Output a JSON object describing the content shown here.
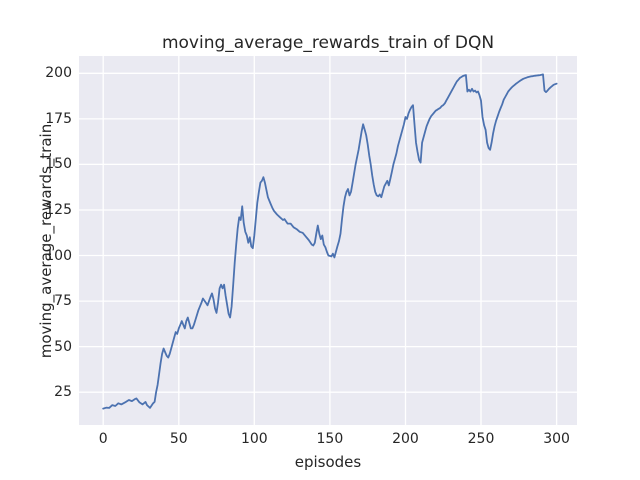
{
  "colors": {
    "figure_background": "#ffffff",
    "plot_background": "#eaeaf2",
    "gridline": "#ffffff",
    "line": "#4c72b0",
    "text": "#262626"
  },
  "chart_data": {
    "type": "line",
    "title": "moving_average_rewards_train of DQN",
    "xlabel": "episodes",
    "ylabel": "moving_average_rewards_train",
    "x_ticks": [
      0,
      50,
      100,
      150,
      200,
      250,
      300
    ],
    "y_ticks": [
      25,
      50,
      75,
      100,
      125,
      150,
      175,
      200
    ],
    "xlim": [
      -16,
      313.5
    ],
    "ylim": [
      7,
      209.5
    ],
    "grid": true,
    "legend_position": "none",
    "series": [
      {
        "name": "moving_average_rewards_train",
        "color": "#4c72b0",
        "x": [
          0,
          2,
          4,
          6,
          8,
          10,
          12,
          15,
          17,
          19,
          21,
          22,
          24,
          26,
          28,
          29,
          31,
          33,
          34,
          35,
          36,
          37,
          38,
          39,
          40,
          41,
          42,
          43,
          44,
          45,
          46,
          47,
          48,
          49,
          50,
          51,
          52,
          53,
          54,
          55,
          56,
          57,
          58,
          59,
          60,
          61,
          63,
          65,
          66,
          68,
          69,
          71,
          72,
          73,
          74,
          75,
          76,
          77,
          78,
          79,
          80,
          81,
          82,
          83,
          84,
          85,
          86,
          87,
          88,
          89,
          90,
          91,
          92,
          93,
          94,
          95,
          96,
          97,
          98,
          99,
          100,
          101,
          102,
          103,
          104,
          105,
          106,
          107,
          108,
          109,
          110,
          111,
          112,
          113,
          115,
          117,
          119,
          120,
          122,
          124,
          126,
          128,
          130,
          132,
          134,
          136,
          138,
          139,
          140,
          141,
          142,
          143,
          144,
          145,
          146,
          147,
          148,
          149,
          151,
          152,
          153,
          155,
          156,
          157,
          158,
          159,
          160,
          161,
          162,
          163,
          164,
          165,
          166,
          167,
          168,
          169,
          170,
          171,
          172,
          173,
          174,
          175,
          176,
          177,
          178,
          179,
          180,
          181,
          182,
          183,
          184,
          185,
          186,
          187,
          188,
          189,
          190,
          191,
          192,
          193,
          194,
          195,
          196,
          197,
          198,
          199,
          200,
          201,
          202,
          203,
          204,
          205,
          206,
          207,
          208,
          209,
          210,
          211,
          212,
          213,
          214,
          215,
          216,
          217,
          218,
          219,
          220,
          221,
          222,
          223,
          224,
          225,
          226,
          227,
          228,
          229,
          230,
          231,
          232,
          233,
          234,
          235,
          236,
          237,
          238,
          239,
          240,
          241,
          242,
          243,
          244,
          245,
          246,
          247,
          248,
          249,
          250,
          251,
          252,
          253,
          254,
          255,
          256,
          257,
          258,
          259,
          260,
          261,
          262,
          263,
          264,
          265,
          266,
          267,
          268,
          269,
          270,
          271,
          272,
          273,
          274,
          275,
          276,
          277,
          278,
          279,
          280,
          281,
          282,
          283,
          284,
          285,
          286,
          287,
          288,
          289,
          290,
          291,
          292,
          293,
          294,
          295,
          296,
          297,
          298,
          299,
          300
        ],
        "y": [
          16,
          16.5,
          16.4,
          17.9,
          17.4,
          18.9,
          18.3,
          19.7,
          20.7,
          20.1,
          21.2,
          21.6,
          19.4,
          18.3,
          19.7,
          17.9,
          16.4,
          18.9,
          19.7,
          25,
          29,
          35,
          41,
          46,
          49,
          47,
          45,
          44,
          46,
          49,
          52,
          55,
          58,
          57,
          60,
          62,
          64,
          62,
          60,
          64,
          66,
          63,
          60,
          60,
          62,
          64.6,
          70,
          74,
          76.4,
          74,
          72.7,
          77.3,
          79.2,
          76,
          71,
          68.5,
          74,
          82,
          84,
          82,
          84,
          78,
          73,
          68,
          66,
          72,
          84,
          96,
          106,
          115,
          121,
          119.5,
          127,
          118,
          113,
          111,
          107,
          110,
          105,
          104,
          111,
          120,
          129,
          135,
          140,
          141,
          143,
          140,
          136,
          132,
          130,
          128,
          126,
          124.5,
          122.5,
          121,
          119.5,
          120,
          117.5,
          117.5,
          115.5,
          114.5,
          113,
          112.5,
          110.5,
          108.5,
          106,
          105.5,
          107,
          112,
          116.5,
          112,
          109,
          111,
          106,
          104.5,
          102,
          100,
          99.5,
          101,
          99,
          105,
          108,
          112,
          120,
          127,
          132,
          135,
          136.5,
          133,
          135,
          140,
          145,
          150,
          154,
          158,
          163,
          168,
          172,
          169,
          166,
          161,
          155,
          150,
          144,
          139,
          135,
          133,
          132.5,
          133.5,
          132,
          135,
          138,
          139.5,
          141,
          138.5,
          142,
          146,
          150,
          153,
          156,
          160,
          163,
          166,
          169,
          172,
          176,
          175,
          178,
          180,
          181.5,
          182.5,
          172,
          162,
          157,
          152.5,
          151,
          162,
          165,
          168,
          171,
          173,
          175,
          176.5,
          177.5,
          178.5,
          179.5,
          180,
          180.5,
          181,
          182,
          182.5,
          183.5,
          185,
          186.5,
          188,
          189.5,
          191,
          192.5,
          194,
          195.5,
          196.5,
          197.5,
          198,
          198.5,
          198.8,
          199,
          190,
          191,
          190,
          191.5,
          190,
          190.5,
          189.5,
          190,
          188,
          185,
          176,
          171.5,
          169,
          162,
          159,
          158,
          162,
          167,
          171,
          174,
          176.5,
          179,
          181,
          183,
          185.5,
          187,
          188.5,
          190,
          191,
          192,
          192.8,
          193.5,
          194.2,
          194.8,
          195.4,
          196,
          196.5,
          197,
          197.3,
          197.6,
          197.9,
          198.1,
          198.3,
          198.4,
          198.6,
          198.7,
          198.8,
          198.9,
          199,
          199.2,
          199.4,
          190.5,
          189.7,
          190.5,
          191.5,
          192.3,
          193,
          193.7,
          194,
          194.3
        ]
      }
    ]
  }
}
